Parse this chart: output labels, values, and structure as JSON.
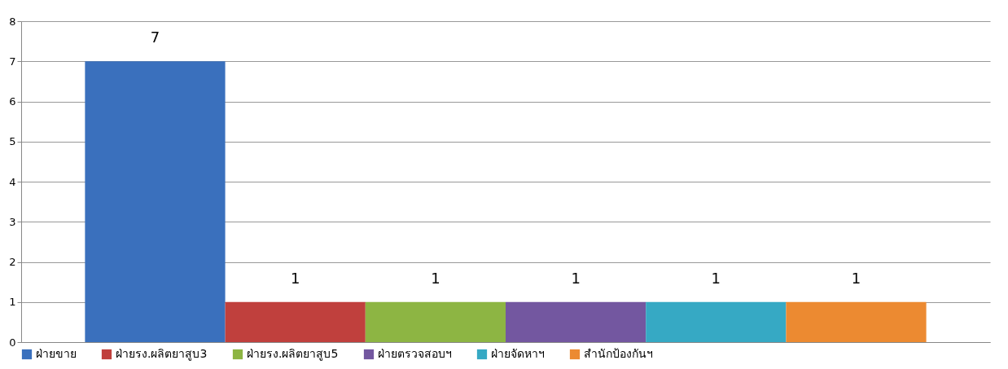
{
  "chart_data": {
    "type": "bar",
    "categories": [
      null
    ],
    "series": [
      {
        "name": "ฝ่ายขาย",
        "color": "#3a70bd",
        "values": [
          7
        ]
      },
      {
        "name": "ฝ่ายรง.ผลิตยาสูบ3",
        "color": "#c0403d",
        "values": [
          1
        ]
      },
      {
        "name": "ฝ่ายรง.ผลิตยาสูบ5",
        "color": "#8db543",
        "values": [
          1
        ]
      },
      {
        "name": "ฝ่ายตรวจสอบฯ",
        "color": "#7357a0",
        "values": [
          1
        ]
      },
      {
        "name": "ฝ่ายจัดหาฯ",
        "color": "#36a9c4",
        "values": [
          1
        ]
      },
      {
        "name": "สำนักป้องกันฯ",
        "color": "#ec8a31",
        "values": [
          1
        ]
      }
    ],
    "ylim": [
      0,
      8
    ],
    "yticks": [
      0,
      1,
      2,
      3,
      4,
      5,
      6,
      7,
      8
    ],
    "grid": "y",
    "legend": "bottom",
    "data_labels": true
  }
}
